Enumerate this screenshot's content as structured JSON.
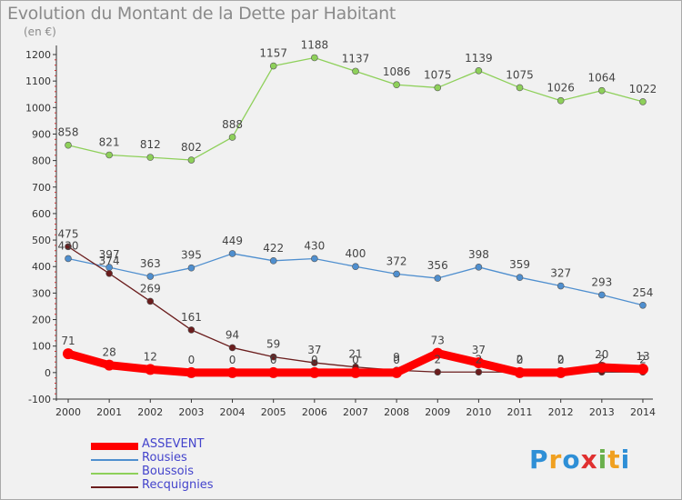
{
  "title": "Evolution du Montant de la Dette par Habitant",
  "unit": "(en €)",
  "logo": {
    "letters": [
      "P",
      "r",
      "o",
      "x",
      "i",
      "t",
      "i"
    ],
    "colors": [
      "#2e8fd6",
      "#f0a020",
      "#2e8fd6",
      "#e03030",
      "#6ab04c",
      "#f0a020",
      "#2e8fd6"
    ]
  },
  "chart_data": {
    "type": "line",
    "x": [
      "2000",
      "2001",
      "2002",
      "2003",
      "2004",
      "2005",
      "2006",
      "2007",
      "2008",
      "2009",
      "2010",
      "2011",
      "2012",
      "2013",
      "2014"
    ],
    "ylim": [
      -100,
      1200
    ],
    "yticks": [
      -100,
      0,
      100,
      200,
      300,
      400,
      500,
      600,
      700,
      800,
      900,
      1000,
      1100,
      1200
    ],
    "grid": false,
    "legend_position": "bottom-left",
    "series": [
      {
        "name": "ASSEVENT",
        "color": "#ff0000",
        "values": [
          71,
          28,
          12,
          0,
          0,
          0,
          0,
          0,
          0,
          73,
          37,
          0,
          0,
          20,
          13
        ]
      },
      {
        "name": "Rousies",
        "color": "#4f8fcf",
        "values": [
          430,
          397,
          363,
          395,
          449,
          422,
          430,
          400,
          372,
          356,
          398,
          359,
          327,
          293,
          254
        ]
      },
      {
        "name": "Boussois",
        "color": "#8ed05a",
        "values": [
          858,
          821,
          812,
          802,
          888,
          1157,
          1188,
          1137,
          1086,
          1075,
          1139,
          1075,
          1026,
          1064,
          1022
        ]
      },
      {
        "name": "Recquignies",
        "color": "#6b1d1d",
        "values": [
          475,
          374,
          269,
          161,
          94,
          59,
          37,
          21,
          9,
          2,
          2,
          2,
          2,
          2,
          2
        ]
      }
    ]
  }
}
